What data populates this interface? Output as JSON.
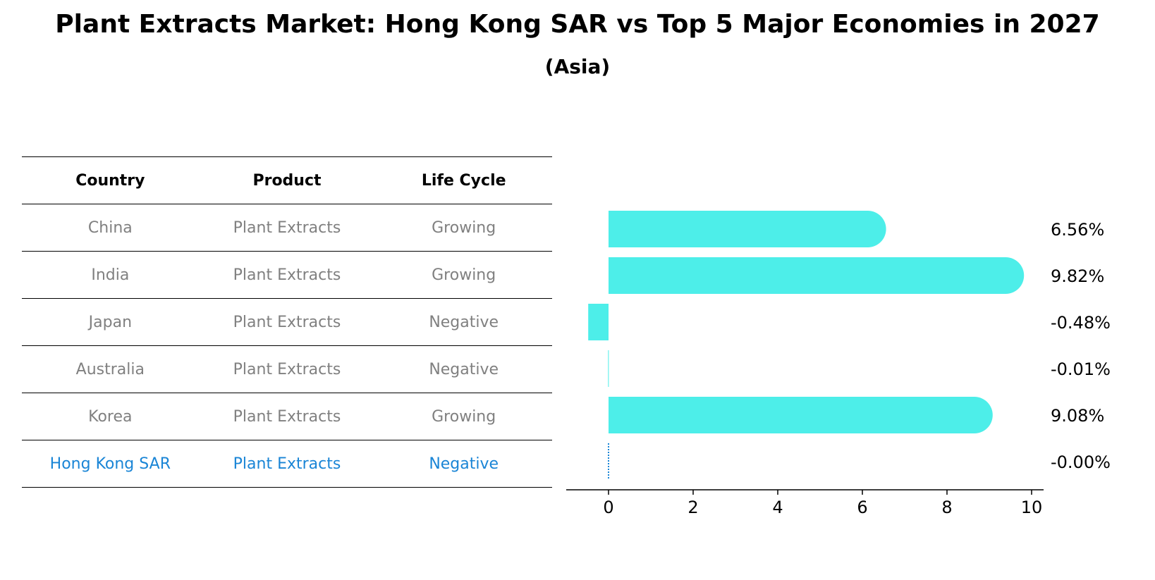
{
  "title": "Plant Extracts Market: Hong Kong SAR vs Top 5 Major Economies in 2027",
  "subtitle": "(Asia)",
  "table": {
    "headers": [
      "Country",
      "Product",
      "Life Cycle"
    ],
    "rows": [
      [
        "China",
        "Plant Extracts",
        "Growing"
      ],
      [
        "India",
        "Plant Extracts",
        "Growing"
      ],
      [
        "Japan",
        "Plant Extracts",
        "Negative"
      ],
      [
        "Australia",
        "Plant Extracts",
        "Negative"
      ],
      [
        "Korea",
        "Plant Extracts",
        "Growing"
      ],
      [
        "Hong Kong SAR",
        "Plant Extracts",
        "Negative"
      ]
    ],
    "highlight_row": 5
  },
  "colors": {
    "bar": "#4deee9",
    "highlight": "#1a85d6",
    "muted_text": "#808080"
  },
  "chart_data": {
    "type": "bar",
    "orientation": "horizontal",
    "categories": [
      "China",
      "India",
      "Japan",
      "Australia",
      "Korea",
      "Hong Kong SAR"
    ],
    "values": [
      6.56,
      9.82,
      -0.48,
      -0.01,
      9.08,
      -0.0
    ],
    "value_labels": [
      "6.56%",
      "9.82%",
      "-0.48%",
      "-0.01%",
      "9.08%",
      "-0.00%"
    ],
    "xlim": [
      -1.0,
      10.3
    ],
    "xticks": [
      0,
      2,
      4,
      6,
      8,
      10
    ],
    "grid": false
  }
}
